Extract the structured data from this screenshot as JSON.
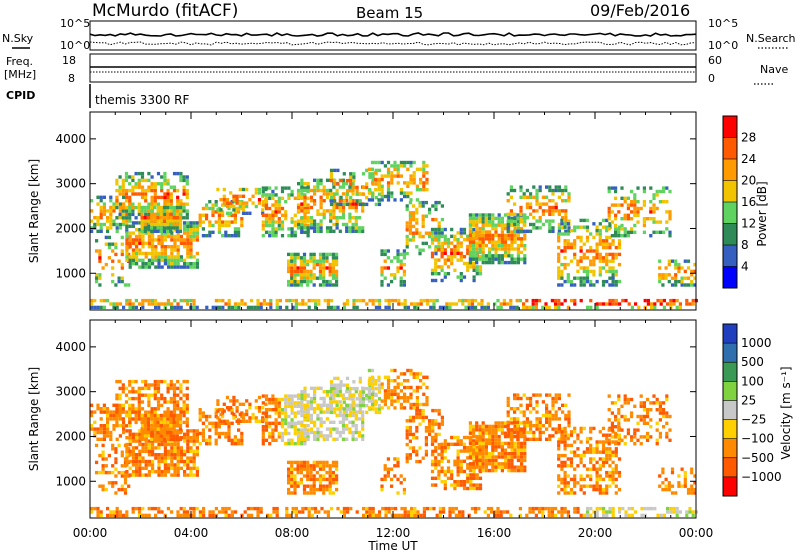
{
  "header": {
    "station": "McMurdo (fitACF)",
    "beam": "Beam 15",
    "date": "09/Feb/2016"
  },
  "strip": {
    "nsky_label": "N.Sky",
    "nsearch_label": "N.Search",
    "noise_ticks": [
      "10^5",
      "10^0"
    ],
    "freq_label_1": "Freq.",
    "freq_label_2": "[MHz]",
    "freq_ticks": [
      "18",
      "8"
    ],
    "nave_label": "Nave",
    "nave_ticks": [
      "60",
      "0"
    ],
    "cpid_label": "CPID",
    "cpid_value": "themis 3300 RF"
  },
  "chart_data": [
    {
      "type": "heatmap",
      "title": "",
      "ylabel": "Slant Range [km]",
      "xlabel": "",
      "x_range": [
        "00:00",
        "24:00"
      ],
      "ylim": [
        180,
        4600
      ],
      "y_ticks": [
        "1000",
        "2000",
        "3000",
        "4000"
      ],
      "colorbar": {
        "label": "Power [dB]",
        "ticks": [
          "28",
          "24",
          "20",
          "16",
          "12",
          "8",
          "4"
        ],
        "colors": [
          "#ff0000",
          "#ff5a00",
          "#ff9a00",
          "#f2c400",
          "#5fd35f",
          "#2e8b57",
          "#3560c0",
          "#0000ff"
        ]
      }
    },
    {
      "type": "heatmap",
      "title": "",
      "ylabel": "Slant Range [km]",
      "xlabel": "Time UT",
      "x_ticks": [
        "00:00",
        "04:00",
        "08:00",
        "12:00",
        "16:00",
        "20:00",
        "00:00"
      ],
      "ylim": [
        180,
        4600
      ],
      "y_ticks": [
        "1000",
        "2000",
        "3000",
        "4000"
      ],
      "colorbar": {
        "label": "Velocity [m s⁻¹]",
        "ticks": [
          "1000",
          "500",
          "100",
          "25",
          "−25",
          "−100",
          "−500",
          "−1000"
        ],
        "colors": [
          "#1f3fbf",
          "#2f6fae",
          "#3a9a55",
          "#7fd33f",
          "#c8c8c8",
          "#ffd000",
          "#ff8a00",
          "#ff5a00",
          "#ff0000"
        ]
      }
    }
  ]
}
